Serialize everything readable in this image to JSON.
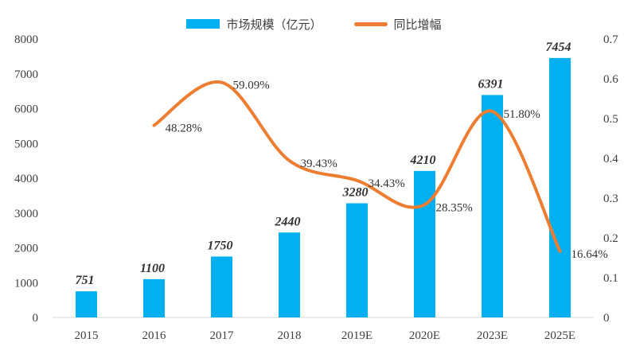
{
  "chart_data": {
    "type": "bar",
    "categories": [
      "2015",
      "2016",
      "2017",
      "2018",
      "2019E",
      "2020E",
      "2023E",
      "2025E"
    ],
    "series": [
      {
        "name": "市场规模（亿元）",
        "type": "bar",
        "axis": "left",
        "color": "#00b0f0",
        "values": [
          751,
          1100,
          1750,
          2440,
          3280,
          4210,
          6391,
          7454
        ],
        "labels": [
          "751",
          "1100",
          "1750",
          "2440",
          "3280",
          "4210",
          "6391",
          "7454"
        ]
      },
      {
        "name": "同比增幅",
        "type": "line",
        "axis": "right",
        "smooth": true,
        "color": "#ed7d31",
        "values": [
          null,
          0.4828,
          0.5909,
          0.3943,
          0.3443,
          0.2835,
          0.518,
          0.1664
        ],
        "labels": [
          "",
          "48.28%",
          "59.09%",
          "39.43%",
          "34.43%",
          "28.35%",
          "51.80%",
          "16.64%"
        ]
      }
    ],
    "y_left": {
      "min": 0,
      "max": 8000,
      "ticks": [
        "0",
        "1000",
        "2000",
        "3000",
        "4000",
        "5000",
        "6000",
        "7000",
        "8000"
      ]
    },
    "y_right": {
      "min": 0,
      "max": 0.7,
      "ticks": [
        "0",
        "0.1",
        "0.2",
        "0.3",
        "0.4",
        "0.5",
        "0.6",
        "0.7"
      ]
    },
    "legend_position": "top-center",
    "grid": false
  }
}
